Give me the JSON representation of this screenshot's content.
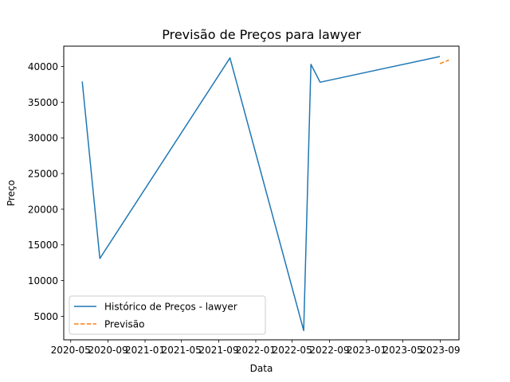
{
  "chart_data": {
    "type": "line",
    "title": "Previsão de Preços para lawyer",
    "xlabel": "Data",
    "ylabel": "Preço",
    "xlim": [
      "2020-04-08",
      "2023-11-02"
    ],
    "ylim": [
      1700,
      42850
    ],
    "x_ticks": [
      {
        "date": "2020-05-01",
        "label": "2020-05"
      },
      {
        "date": "2020-09-01",
        "label": "2020-09"
      },
      {
        "date": "2021-01-01",
        "label": "2021-01"
      },
      {
        "date": "2021-05-01",
        "label": "2021-05"
      },
      {
        "date": "2021-09-01",
        "label": "2021-09"
      },
      {
        "date": "2022-01-01",
        "label": "2022-01"
      },
      {
        "date": "2022-05-01",
        "label": "2022-05"
      },
      {
        "date": "2022-09-01",
        "label": "2022-09"
      },
      {
        "date": "2023-01-01",
        "label": "2023-01"
      },
      {
        "date": "2023-05-01",
        "label": "2023-05"
      },
      {
        "date": "2023-09-01",
        "label": "2023-09"
      }
    ],
    "y_ticks": [
      5000,
      10000,
      15000,
      20000,
      25000,
      30000,
      35000,
      40000
    ],
    "grid": false,
    "legend": "lower-left",
    "series": [
      {
        "name": "Histórico de Preços - lawyer",
        "color": "#1f77b4",
        "style": "solid",
        "x": [
          "2020-06-08",
          "2020-08-05",
          "2021-10-08",
          "2022-06-08",
          "2022-07-02",
          "2022-08-01",
          "2023-08-31"
        ],
        "y": [
          37900,
          13100,
          41200,
          3000,
          40300,
          37800,
          41400
        ]
      },
      {
        "name": "Previsão",
        "color": "#ff7f0e",
        "style": "dashed",
        "x": [
          "2023-08-31",
          "2023-09-30"
        ],
        "y": [
          40400,
          40900
        ]
      }
    ]
  }
}
